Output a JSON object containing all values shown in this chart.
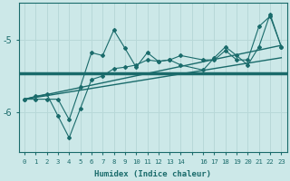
{
  "xlabel": "Humidex (Indice chaleur)",
  "ylabel": "",
  "bg_color": "#cce8e8",
  "grid_color": "#b8d8d8",
  "line_color": "#1a6b6b",
  "xlim": [
    -0.5,
    23.5
  ],
  "ylim": [
    -6.55,
    -4.5
  ],
  "yticks": [
    -6,
    -5
  ],
  "xtick_labels": [
    "0",
    "1",
    "2",
    "3",
    "4",
    "5",
    "6",
    "7",
    "8",
    "9",
    "10",
    "11",
    "12",
    "13",
    "14",
    "",
    "16",
    "17",
    "18",
    "19",
    "20",
    "21",
    "22",
    "23"
  ],
  "series1_x": [
    0,
    1,
    2,
    3,
    4,
    5,
    6,
    7,
    8,
    9,
    10,
    11,
    12,
    13,
    14,
    16,
    17,
    18,
    19,
    20,
    21,
    22,
    23
  ],
  "series1_y": [
    -5.82,
    -5.82,
    -5.82,
    -5.82,
    -6.1,
    -5.65,
    -5.18,
    -5.22,
    -4.87,
    -5.12,
    -5.38,
    -5.18,
    -5.3,
    -5.28,
    -5.22,
    -5.28,
    -5.28,
    -5.15,
    -5.28,
    -5.28,
    -4.82,
    -4.68,
    -5.1
  ],
  "series2_x": [
    0,
    1,
    2,
    3,
    4,
    5,
    6,
    7,
    8,
    9,
    10,
    11,
    12,
    13,
    14,
    16,
    17,
    18,
    19,
    20,
    21,
    22,
    23
  ],
  "series2_y": [
    -5.82,
    -5.78,
    -5.75,
    -6.05,
    -6.35,
    -5.95,
    -5.55,
    -5.5,
    -5.4,
    -5.38,
    -5.35,
    -5.28,
    -5.3,
    -5.28,
    -5.35,
    -5.42,
    -5.25,
    -5.1,
    -5.22,
    -5.35,
    -5.1,
    -4.65,
    -5.1
  ],
  "trend1_x": [
    0,
    23
  ],
  "trend1_y": [
    -5.82,
    -5.25
  ],
  "trend2_x": [
    0,
    23
  ],
  "trend2_y": [
    -5.82,
    -5.08
  ],
  "flat_y": -5.47
}
